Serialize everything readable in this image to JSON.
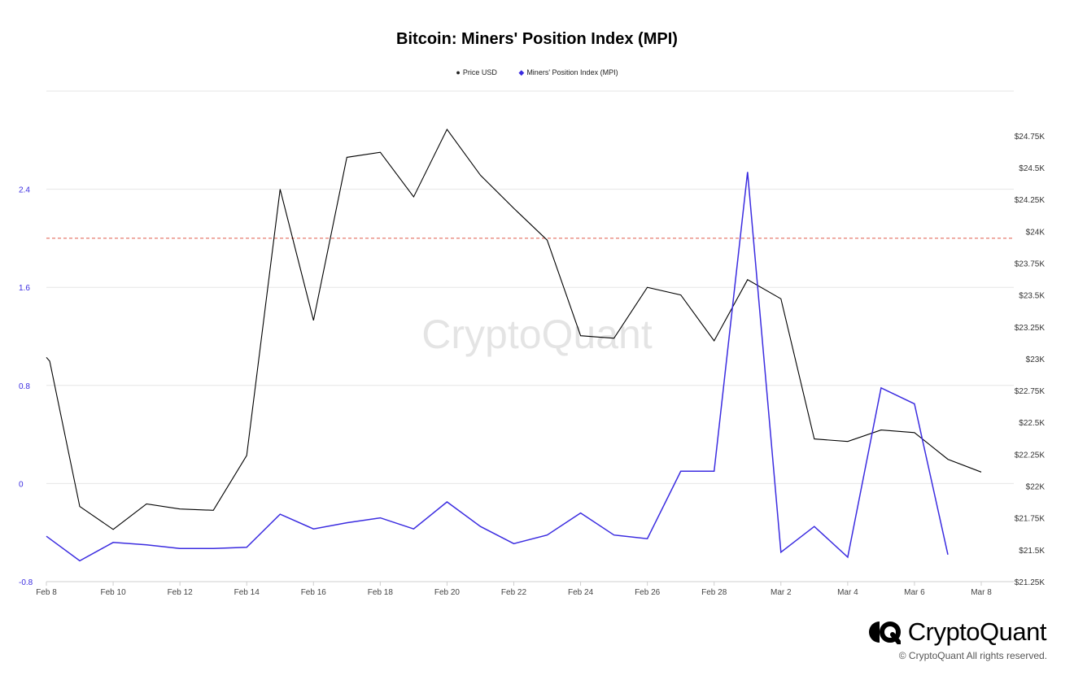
{
  "chart_data": {
    "type": "line",
    "title": "Bitcoin: Miners' Position Index (MPI)",
    "legend": [
      {
        "name": "Price USD",
        "marker": "●",
        "color": "#000000"
      },
      {
        "name": "Miners' Position Index (MPI)",
        "marker": "◆",
        "color": "#3b2ce0"
      }
    ],
    "legend_position": "top-center",
    "x_ticks": [
      "Feb 8",
      "Feb 10",
      "Feb 12",
      "Feb 14",
      "Feb 16",
      "Feb 18",
      "Feb 20",
      "Feb 22",
      "Feb 24",
      "Feb 26",
      "Feb 28",
      "Mar 2",
      "Mar 4",
      "Mar 6",
      "Mar 8"
    ],
    "y_left": {
      "ticks": [
        "2.4",
        "1.6",
        "0.8",
        "0",
        "-0.8"
      ],
      "ylim": [
        -0.8,
        3.2
      ],
      "color": "#3b2ce0"
    },
    "y_right": {
      "ticks": [
        "$24.75K",
        "$24.5K",
        "$24.25K",
        "$24K",
        "$23.75K",
        "$23.5K",
        "$23.25K",
        "$23K",
        "$22.75K",
        "$22.5K",
        "$22.25K",
        "$22K",
        "$21.75K",
        "$21.5K",
        "$21.25K"
      ],
      "ylim": [
        21250,
        25100
      ],
      "color": "#333333"
    },
    "threshold": {
      "value": 2.0,
      "axis": "left",
      "color": "#e05a4a",
      "style": "dashed"
    },
    "grid": true,
    "series": [
      {
        "name": "Price USD",
        "axis": "right",
        "color": "#000000",
        "x": [
          "2023-02-08",
          "2023-02-08",
          "2023-02-09",
          "2023-02-10",
          "2023-02-11",
          "2023-02-12",
          "2023-02-13",
          "2023-02-14",
          "2023-02-15",
          "2023-02-16",
          "2023-02-17",
          "2023-02-18",
          "2023-02-19",
          "2023-02-20",
          "2023-02-21",
          "2023-02-22",
          "2023-02-23",
          "2023-02-24",
          "2023-02-25",
          "2023-02-26",
          "2023-02-27",
          "2023-02-28",
          "2023-03-01",
          "2023-03-02",
          "2023-03-03",
          "2023-03-04",
          "2023-03-05",
          "2023-03-06",
          "2023-03-07",
          "2023-03-08"
        ],
        "values": [
          23010,
          22980,
          21840,
          21660,
          21860,
          21820,
          21810,
          22240,
          24330,
          23300,
          24580,
          24620,
          24270,
          24800,
          24440,
          24180,
          23930,
          23180,
          23160,
          23560,
          23500,
          23140,
          23620,
          23470,
          22370,
          22350,
          22440,
          22420,
          22210,
          22110
        ]
      },
      {
        "name": "Miners' Position Index (MPI)",
        "axis": "left",
        "color": "#3b2ce0",
        "x": [
          "2023-02-08",
          "2023-02-09",
          "2023-02-10",
          "2023-02-11",
          "2023-02-12",
          "2023-02-13",
          "2023-02-14",
          "2023-02-15",
          "2023-02-16",
          "2023-02-17",
          "2023-02-18",
          "2023-02-19",
          "2023-02-20",
          "2023-02-21",
          "2023-02-22",
          "2023-02-23",
          "2023-02-24",
          "2023-02-25",
          "2023-02-26",
          "2023-02-27",
          "2023-02-28",
          "2023-03-01",
          "2023-03-02",
          "2023-03-03",
          "2023-03-04",
          "2023-03-05",
          "2023-03-06",
          "2023-03-07"
        ],
        "values": [
          -0.43,
          -0.63,
          -0.48,
          -0.5,
          -0.53,
          -0.53,
          -0.52,
          -0.25,
          -0.37,
          -0.32,
          -0.28,
          -0.37,
          -0.15,
          -0.35,
          -0.49,
          -0.42,
          -0.24,
          -0.42,
          -0.45,
          0.1,
          0.1,
          2.54,
          -0.56,
          -0.35,
          -0.6,
          0.78,
          0.65,
          -0.58
        ]
      }
    ]
  },
  "watermark": "CryptoQuant",
  "brand": {
    "name": "CryptoQuant",
    "icon": "cryptoquant-logo-icon"
  },
  "copyright": "© CryptoQuant All rights reserved."
}
